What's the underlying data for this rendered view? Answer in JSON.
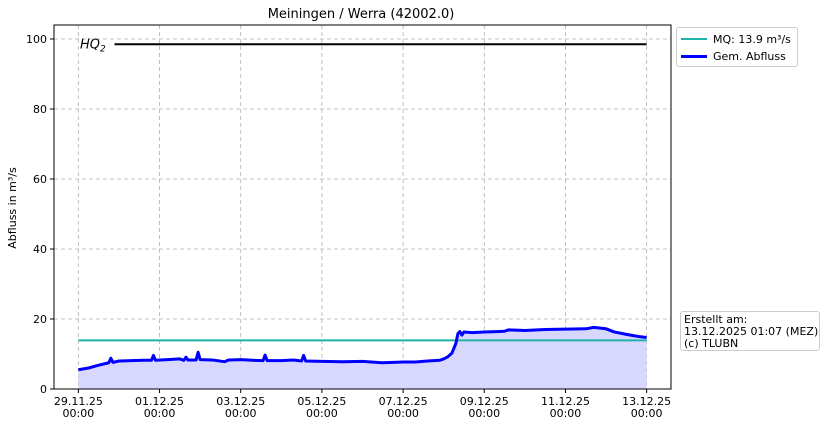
{
  "chart_data": {
    "type": "area",
    "title": "Meiningen / Werra (42002.0)",
    "ylabel": "Abfluss in m³/s",
    "xlabel": "",
    "ylim": [
      0,
      104
    ],
    "yticks": [
      0,
      20,
      40,
      60,
      80,
      100
    ],
    "xticks": [
      {
        "date": "29.11.25",
        "time": "00:00",
        "day": 0
      },
      {
        "date": "01.12.25",
        "time": "00:00",
        "day": 2
      },
      {
        "date": "03.12.25",
        "time": "00:00",
        "day": 4
      },
      {
        "date": "05.12.25",
        "time": "00:00",
        "day": 6
      },
      {
        "date": "07.12.25",
        "time": "00:00",
        "day": 8
      },
      {
        "date": "09.12.25",
        "time": "00:00",
        "day": 10
      },
      {
        "date": "11.12.25",
        "time": "00:00",
        "day": 12
      },
      {
        "date": "13.12.25",
        "time": "00:00",
        "day": 14
      }
    ],
    "xlim_days": [
      -0.6,
      14.6
    ],
    "grid": true,
    "legend_position": "outside-top-right",
    "hq2": {
      "label": "HQ",
      "subscript": "2",
      "value": 98.5,
      "color": "#000000"
    },
    "series": [
      {
        "name": "MQ: 13.9 m³/s",
        "color": "#20b2aa",
        "values": [
          [
            0,
            13.9
          ],
          [
            14,
            13.9
          ]
        ]
      },
      {
        "name": "Gem. Abfluss",
        "color": "#0000ff",
        "fill": "#d8d8ff",
        "values": [
          [
            0,
            5.5
          ],
          [
            0.25,
            6.0
          ],
          [
            0.5,
            6.8
          ],
          [
            0.75,
            7.5
          ],
          [
            0.8,
            8.8
          ],
          [
            0.85,
            7.6
          ],
          [
            1,
            8.0
          ],
          [
            1.3,
            8.1
          ],
          [
            1.6,
            8.2
          ],
          [
            1.8,
            8.2
          ],
          [
            1.85,
            9.6
          ],
          [
            1.9,
            8.2
          ],
          [
            2.2,
            8.4
          ],
          [
            2.5,
            8.6
          ],
          [
            2.6,
            8.2
          ],
          [
            2.65,
            9.1
          ],
          [
            2.7,
            8.3
          ],
          [
            2.9,
            8.3
          ],
          [
            2.95,
            10.5
          ],
          [
            3.0,
            8.4
          ],
          [
            3.3,
            8.3
          ],
          [
            3.6,
            7.8
          ],
          [
            3.7,
            8.3
          ],
          [
            4,
            8.4
          ],
          [
            4.3,
            8.2
          ],
          [
            4.55,
            8.1
          ],
          [
            4.6,
            9.7
          ],
          [
            4.65,
            8.1
          ],
          [
            5,
            8.1
          ],
          [
            5.3,
            8.3
          ],
          [
            5.5,
            8.0
          ],
          [
            5.55,
            9.6
          ],
          [
            5.6,
            8.0
          ],
          [
            6,
            7.9
          ],
          [
            6.5,
            7.8
          ],
          [
            7,
            7.9
          ],
          [
            7.5,
            7.5
          ],
          [
            8,
            7.7
          ],
          [
            8.3,
            7.7
          ],
          [
            8.6,
            8.0
          ],
          [
            8.9,
            8.2
          ],
          [
            9.0,
            8.6
          ],
          [
            9.1,
            9.2
          ],
          [
            9.2,
            10.2
          ],
          [
            9.3,
            13.0
          ],
          [
            9.35,
            15.8
          ],
          [
            9.4,
            16.4
          ],
          [
            9.45,
            15.4
          ],
          [
            9.5,
            16.3
          ],
          [
            9.7,
            16.1
          ],
          [
            10,
            16.3
          ],
          [
            10.3,
            16.4
          ],
          [
            10.5,
            16.5
          ],
          [
            10.6,
            16.9
          ],
          [
            11,
            16.7
          ],
          [
            11.5,
            17.0
          ],
          [
            12,
            17.1
          ],
          [
            12.5,
            17.2
          ],
          [
            12.7,
            17.6
          ],
          [
            13,
            17.2
          ],
          [
            13.2,
            16.3
          ],
          [
            13.5,
            15.6
          ],
          [
            13.8,
            15.0
          ],
          [
            14,
            14.7
          ]
        ]
      }
    ]
  },
  "info": {
    "line1": "Erstellt am:",
    "line2": "13.12.2025 01:07 (MEZ)",
    "line3": "(c) TLUBN"
  }
}
